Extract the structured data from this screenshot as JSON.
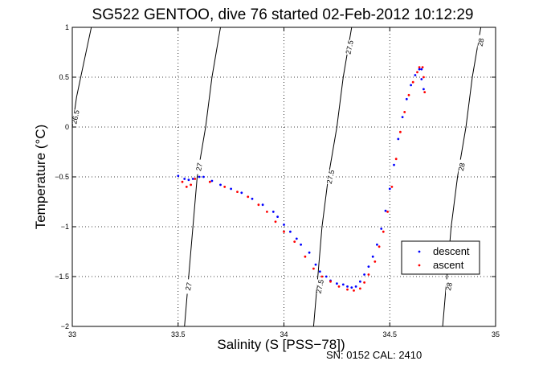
{
  "chart_data": {
    "type": "scatter",
    "title": "SG522 GENTOO, dive 76 started 02-Feb-2012 10:12:29",
    "xlabel": "Salinity (S [PSS−78])",
    "ylabel": "Temperature (°C)",
    "xlim": [
      33,
      35
    ],
    "ylim": [
      -2,
      1
    ],
    "xticks": [
      33,
      33.5,
      34,
      34.5,
      35
    ],
    "xtick_labels": [
      "33",
      "33.5",
      "34",
      "34.5",
      "35"
    ],
    "yticks": [
      -2,
      -1.5,
      -1,
      -0.5,
      0,
      0.5,
      1
    ],
    "ytick_labels": [
      "−2",
      "−1.5",
      "−1",
      "−0.5",
      "0",
      "0.5",
      "1"
    ],
    "grid": true,
    "grid_style": "dotted",
    "legend_position": "lower-right",
    "footnote": "SN: 0152  CAL: 2410",
    "density_contours": [
      {
        "label": "26.5",
        "points": [
          [
            33.0,
            0.0
          ],
          [
            33.02,
            0.3
          ],
          [
            33.04,
            0.5
          ],
          [
            33.07,
            0.8
          ],
          [
            33.09,
            1.0
          ]
        ],
        "label_positions": [
          [
            33.015,
            0.1
          ]
        ]
      },
      {
        "label": "27",
        "points": [
          [
            33.53,
            -2.0
          ],
          [
            33.55,
            -1.5
          ],
          [
            33.57,
            -1.0
          ],
          [
            33.59,
            -0.5
          ],
          [
            33.63,
            0.0
          ],
          [
            33.66,
            0.5
          ],
          [
            33.7,
            1.0
          ]
        ],
        "label_positions": [
          [
            33.55,
            -1.6
          ],
          [
            33.6,
            -0.4
          ]
        ]
      },
      {
        "label": "27.5",
        "points": [
          [
            34.14,
            -2.0
          ],
          [
            34.16,
            -1.5
          ],
          [
            34.18,
            -1.0
          ],
          [
            34.21,
            -0.5
          ],
          [
            34.25,
            0.0
          ],
          [
            34.28,
            0.5
          ],
          [
            34.32,
            1.0
          ]
        ],
        "label_positions": [
          [
            34.17,
            -1.6
          ],
          [
            34.22,
            -0.5
          ],
          [
            34.31,
            0.8
          ]
        ]
      },
      {
        "label": "28",
        "points": [
          [
            34.75,
            -2.0
          ],
          [
            34.77,
            -1.5
          ],
          [
            34.79,
            -1.0
          ],
          [
            34.82,
            -0.5
          ],
          [
            34.86,
            0.0
          ],
          [
            34.89,
            0.5
          ],
          [
            34.93,
            1.0
          ]
        ],
        "label_positions": [
          [
            34.78,
            -1.6
          ],
          [
            34.84,
            -0.4
          ],
          [
            34.93,
            0.85
          ]
        ]
      }
    ],
    "series": [
      {
        "name": "descent",
        "color": "#0000ff",
        "marker": "dot",
        "points": [
          [
            33.5,
            -0.49
          ],
          [
            33.53,
            -0.52
          ],
          [
            33.55,
            -0.53
          ],
          [
            33.57,
            -0.52
          ],
          [
            33.6,
            -0.5
          ],
          [
            33.62,
            -0.5
          ],
          [
            33.66,
            -0.54
          ],
          [
            33.7,
            -0.58
          ],
          [
            33.75,
            -0.62
          ],
          [
            33.8,
            -0.66
          ],
          [
            33.85,
            -0.72
          ],
          [
            33.9,
            -0.78
          ],
          [
            33.95,
            -0.85
          ],
          [
            33.97,
            -0.9
          ],
          [
            34.0,
            -0.98
          ],
          [
            34.03,
            -1.05
          ],
          [
            34.06,
            -1.12
          ],
          [
            34.08,
            -1.18
          ],
          [
            34.12,
            -1.26
          ],
          [
            34.15,
            -1.38
          ],
          [
            34.17,
            -1.45
          ],
          [
            34.2,
            -1.5
          ],
          [
            34.22,
            -1.54
          ],
          [
            34.25,
            -1.57
          ],
          [
            34.28,
            -1.58
          ],
          [
            34.3,
            -1.6
          ],
          [
            34.32,
            -1.61
          ],
          [
            34.34,
            -1.6
          ],
          [
            34.36,
            -1.55
          ],
          [
            34.38,
            -1.48
          ],
          [
            34.4,
            -1.4
          ],
          [
            34.42,
            -1.3
          ],
          [
            34.44,
            -1.18
          ],
          [
            34.46,
            -1.02
          ],
          [
            34.48,
            -0.84
          ],
          [
            34.5,
            -0.62
          ],
          [
            34.52,
            -0.38
          ],
          [
            34.54,
            -0.12
          ],
          [
            34.56,
            0.1
          ],
          [
            34.58,
            0.28
          ],
          [
            34.6,
            0.42
          ],
          [
            34.62,
            0.52
          ],
          [
            34.64,
            0.58
          ],
          [
            34.65,
            0.58
          ],
          [
            34.65,
            0.48
          ],
          [
            34.66,
            0.38
          ]
        ]
      },
      {
        "name": "ascent",
        "color": "#ff0000",
        "marker": "dot",
        "points": [
          [
            33.52,
            -0.55
          ],
          [
            33.54,
            -0.6
          ],
          [
            33.56,
            -0.58
          ],
          [
            33.58,
            -0.52
          ],
          [
            33.65,
            -0.55
          ],
          [
            33.72,
            -0.6
          ],
          [
            33.78,
            -0.65
          ],
          [
            33.83,
            -0.7
          ],
          [
            33.88,
            -0.78
          ],
          [
            33.92,
            -0.85
          ],
          [
            33.96,
            -0.95
          ],
          [
            34.0,
            -1.05
          ],
          [
            34.05,
            -1.15
          ],
          [
            34.1,
            -1.3
          ],
          [
            34.14,
            -1.42
          ],
          [
            34.18,
            -1.5
          ],
          [
            34.22,
            -1.55
          ],
          [
            34.26,
            -1.6
          ],
          [
            34.3,
            -1.63
          ],
          [
            34.33,
            -1.64
          ],
          [
            34.36,
            -1.62
          ],
          [
            34.38,
            -1.56
          ],
          [
            34.4,
            -1.48
          ],
          [
            34.43,
            -1.35
          ],
          [
            34.45,
            -1.2
          ],
          [
            34.47,
            -1.05
          ],
          [
            34.49,
            -0.85
          ],
          [
            34.51,
            -0.6
          ],
          [
            34.53,
            -0.32
          ],
          [
            34.55,
            -0.05
          ],
          [
            34.57,
            0.15
          ],
          [
            34.59,
            0.32
          ],
          [
            34.61,
            0.45
          ],
          [
            34.63,
            0.55
          ],
          [
            34.64,
            0.6
          ],
          [
            34.655,
            0.6
          ],
          [
            34.66,
            0.5
          ],
          [
            34.665,
            0.35
          ]
        ]
      }
    ]
  }
}
